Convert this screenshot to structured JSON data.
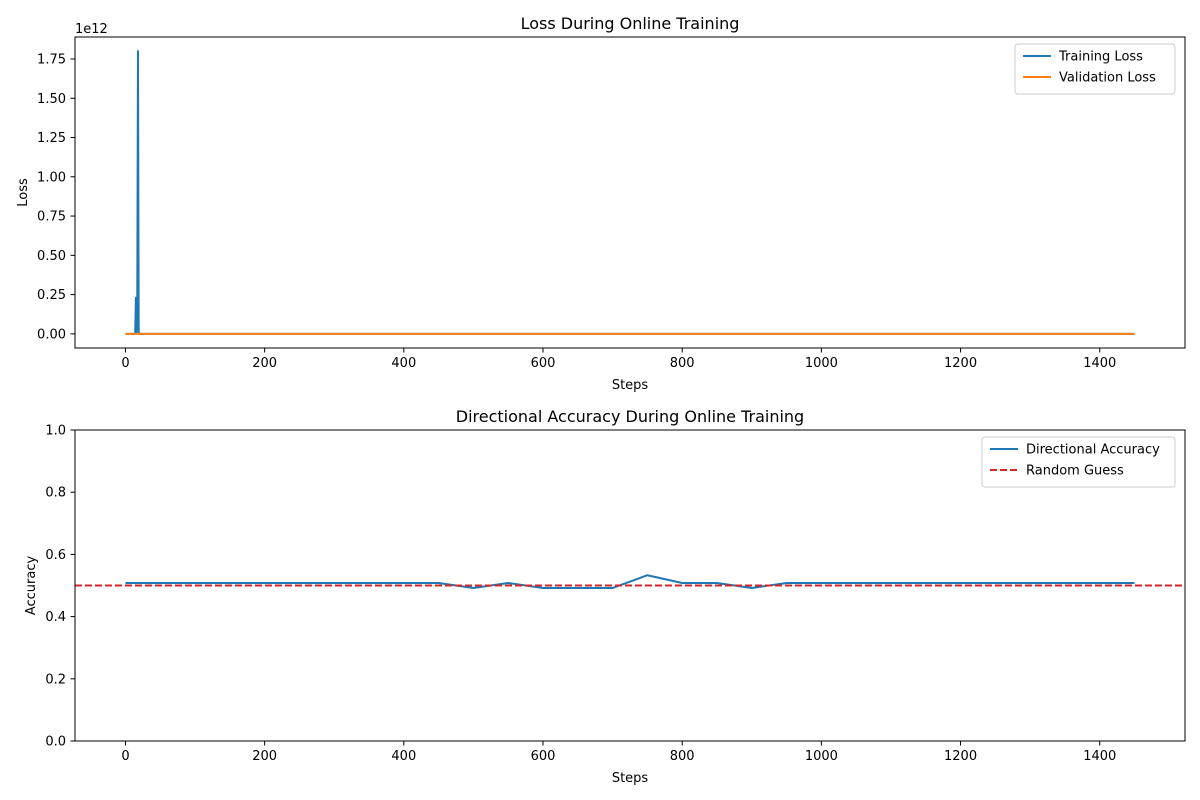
{
  "chart_data": [
    {
      "type": "line",
      "title": "Loss During Online Training",
      "xlabel": "Steps",
      "ylabel": "Loss",
      "offset_label": "1e12",
      "xlim": [
        -72.5,
        1522.5
      ],
      "ylim": [
        -0.09,
        1.89
      ],
      "y_scale_factor": 1000000000000.0,
      "xticks": [
        0,
        200,
        400,
        600,
        800,
        1000,
        1200,
        1400
      ],
      "xtick_labels": [
        "0",
        "200",
        "400",
        "600",
        "800",
        "1000",
        "1200",
        "1400"
      ],
      "yticks": [
        0.0,
        0.25,
        0.5,
        0.75,
        1.0,
        1.25,
        1.5,
        1.75
      ],
      "ytick_labels": [
        "0.00",
        "0.25",
        "0.50",
        "0.75",
        "1.00",
        "1.25",
        "1.50",
        "1.75"
      ],
      "grid": false,
      "legend_position": "upper right",
      "series": [
        {
          "name": "Training Loss",
          "color": "#1f77b4",
          "style": "solid",
          "x": [
            0,
            14,
            15,
            16,
            17,
            18,
            19,
            20,
            1450
          ],
          "y": [
            0,
            0,
            0.23,
            0.01,
            0.24,
            1.8,
            0.01,
            0,
            0
          ]
        },
        {
          "name": "Validation Loss",
          "color": "#ff7f0e",
          "style": "solid",
          "x": [
            0,
            1450
          ],
          "y": [
            0,
            0
          ]
        }
      ]
    },
    {
      "type": "line",
      "title": "Directional Accuracy During Online Training",
      "xlabel": "Steps",
      "ylabel": "Accuracy",
      "xlim": [
        -72.5,
        1522.5
      ],
      "ylim": [
        0.0,
        1.0
      ],
      "xticks": [
        0,
        200,
        400,
        600,
        800,
        1000,
        1200,
        1400
      ],
      "xtick_labels": [
        "0",
        "200",
        "400",
        "600",
        "800",
        "1000",
        "1200",
        "1400"
      ],
      "yticks": [
        0.0,
        0.2,
        0.4,
        0.6,
        0.8,
        1.0
      ],
      "ytick_labels": [
        "0.0",
        "0.2",
        "0.4",
        "0.6",
        "0.8",
        "1.0"
      ],
      "grid": false,
      "legend_position": "upper right",
      "series": [
        {
          "name": "Directional Accuracy",
          "color": "#1f77b4",
          "style": "solid",
          "x": [
            0,
            50,
            100,
            150,
            200,
            250,
            300,
            350,
            400,
            450,
            500,
            550,
            600,
            650,
            700,
            750,
            800,
            850,
            900,
            950,
            1000,
            1050,
            1100,
            1150,
            1200,
            1250,
            1300,
            1350,
            1400,
            1450
          ],
          "y": [
            0.508,
            0.508,
            0.508,
            0.508,
            0.508,
            0.508,
            0.508,
            0.508,
            0.508,
            0.508,
            0.492,
            0.508,
            0.492,
            0.492,
            0.492,
            0.533,
            0.508,
            0.508,
            0.492,
            0.508,
            0.508,
            0.508,
            0.508,
            0.508,
            0.508,
            0.508,
            0.508,
            0.508,
            0.508,
            0.508
          ]
        },
        {
          "name": "Random Guess",
          "color": "#d62728",
          "style": "dashed",
          "type": "hline",
          "y": 0.5
        }
      ]
    }
  ]
}
